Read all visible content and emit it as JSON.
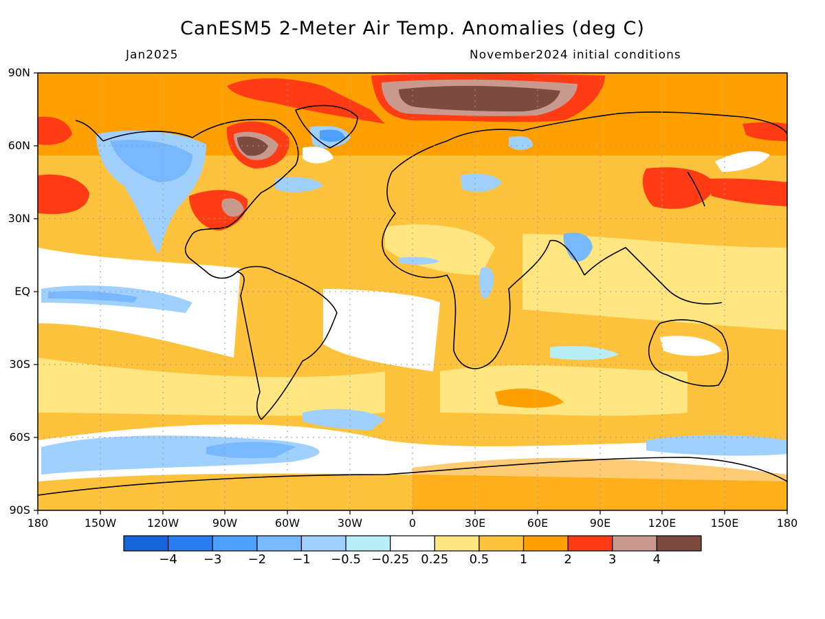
{
  "header": {
    "title": "CanESM5 2-Meter Air Temp. Anomalies (deg C)",
    "valid_month": "Jan2025",
    "init": "November2024 initial conditions"
  },
  "axes": {
    "lat_labels": [
      "90N",
      "60N",
      "30N",
      "EQ",
      "30S",
      "60S",
      "90S"
    ],
    "lon_labels": [
      "180",
      "150W",
      "120W",
      "90W",
      "60W",
      "30W",
      "0",
      "30E",
      "60E",
      "90E",
      "120E",
      "150E",
      "180"
    ]
  },
  "colorbar": {
    "colors": [
      "#1565d8",
      "#2a7ef0",
      "#4ea0ff",
      "#78b8ff",
      "#9fd0ff",
      "#b8eef8",
      "#ffffff",
      "#ffe680",
      "#ffc23c",
      "#ffa000",
      "#ff3c14",
      "#c89a8e",
      "#7a4b3e"
    ],
    "labels": [
      "−4",
      "−3",
      "−2",
      "−1",
      "−0.5",
      "−0.25",
      "0.25",
      "0.5",
      "1",
      "2",
      "3",
      "4"
    ]
  }
}
